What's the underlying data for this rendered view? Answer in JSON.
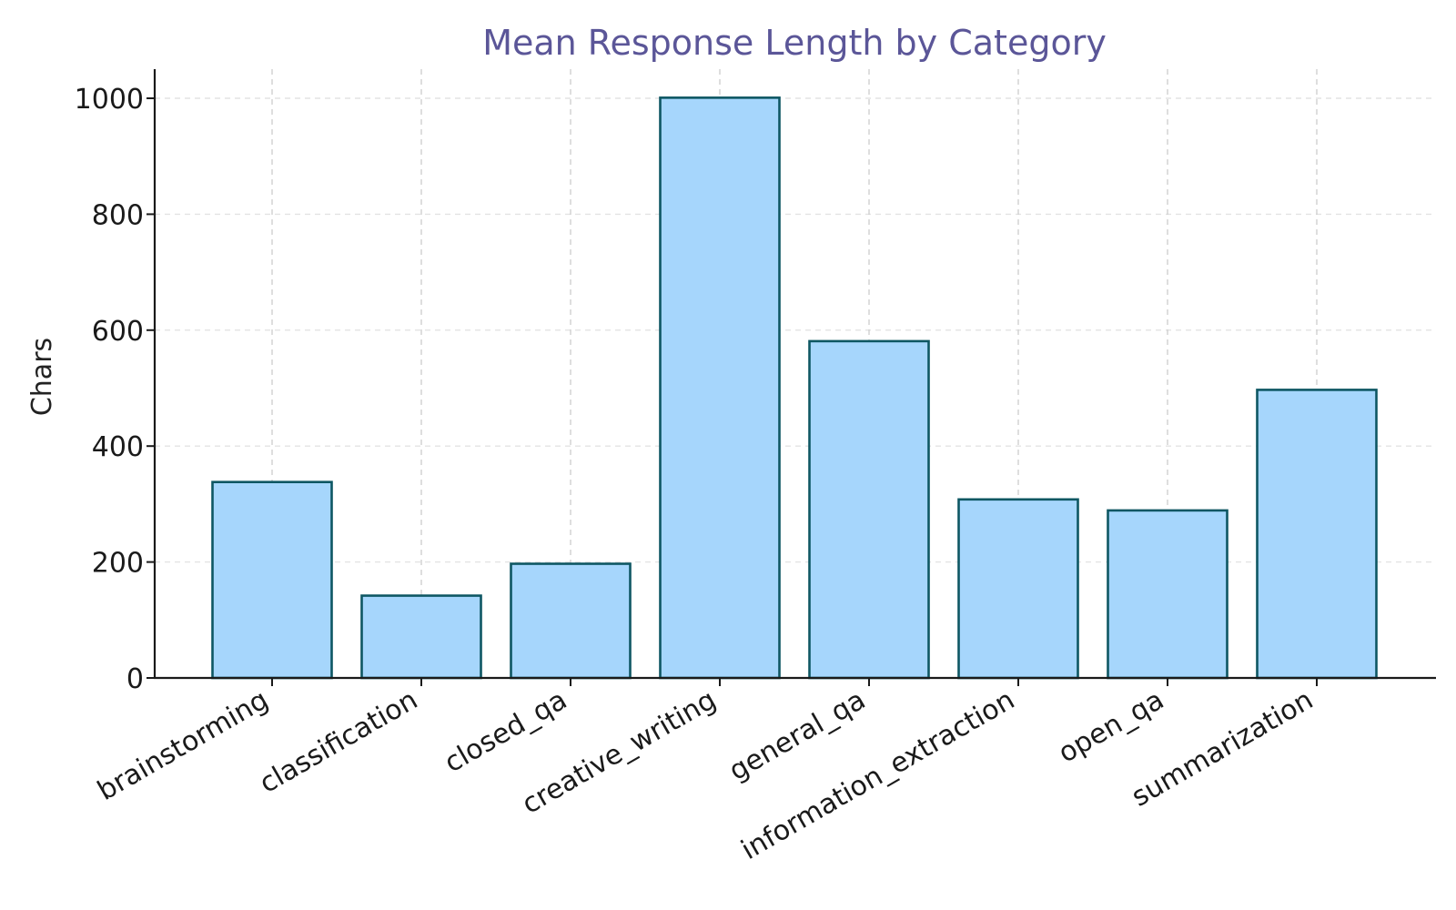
{
  "chart_data": {
    "type": "bar",
    "title": "Mean Response Length by Category",
    "xlabel": "",
    "ylabel": "Chars",
    "categories": [
      "brainstorming",
      "classification",
      "closed_qa",
      "creative_writing",
      "general_qa",
      "information_extraction",
      "open_qa",
      "summarization"
    ],
    "values": [
      338,
      142,
      197,
      1001,
      581,
      308,
      289,
      497
    ],
    "ylim": [
      0,
      1050
    ],
    "yticks": [
      0,
      200,
      400,
      600,
      800,
      1000
    ],
    "grid": true,
    "colors": {
      "bar_fill": "#a6d6fc",
      "bar_edge": "#0e5763",
      "title": "#5b5698",
      "axis": "#1a1a1a",
      "grid": "#cfcfcf"
    }
  }
}
